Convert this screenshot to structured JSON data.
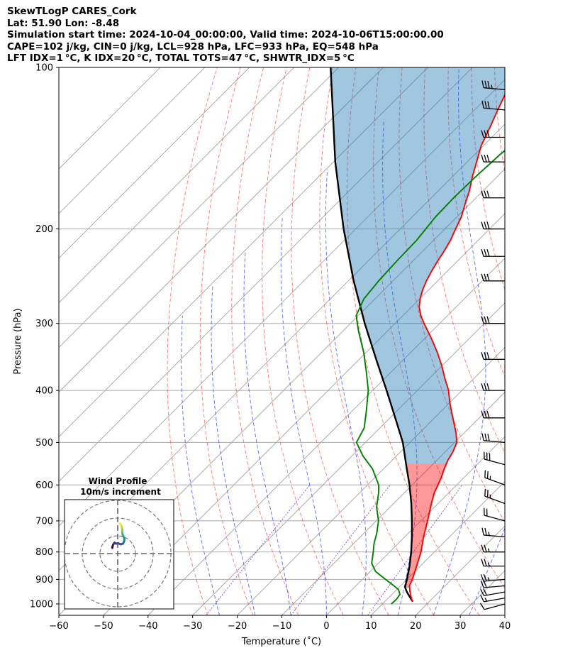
{
  "header": {
    "line1": "SkewTLogP CARES_Cork",
    "line2": "Lat: 51.90   Lon: -8.48",
    "line3": "Simulation start time: 2024-10-04_00:00:00, Valid time: 2024-10-06T15:00:00.00",
    "line4": "CAPE=102 j/kg, CIN=0 j/kg, LCL=928 hPa, LFC=933 hPa, EQ=548 hPa",
    "line5": "LFT IDX=1 °C, K IDX=20 °C, TOTAL TOTS=47 °C, SHWTR_IDX=5 °C"
  },
  "chart_data": {
    "type": "line",
    "title": "SkewTLogP CARES_Cork",
    "xlabel": "Temperature (˚C)",
    "ylabel": "Pressure (hPa)",
    "xlim": [
      -60,
      40
    ],
    "ylim": [
      1050,
      100
    ],
    "y_scale": "log",
    "x_ticks": [
      "−60",
      "−50",
      "−40",
      "−30",
      "−20",
      "−10",
      "0",
      "10",
      "20",
      "30",
      "40"
    ],
    "x_tick_values": [
      -60,
      -50,
      -40,
      -30,
      -20,
      -10,
      0,
      10,
      20,
      30,
      40
    ],
    "y_ticks": [
      "100",
      "200",
      "300",
      "400",
      "500",
      "600",
      "700",
      "800",
      "900",
      "1000"
    ],
    "y_tick_values": [
      100,
      200,
      300,
      400,
      500,
      600,
      700,
      800,
      900,
      1000
    ],
    "grid": true,
    "colors": {
      "temperature": "#ff0000",
      "dewpoint": "#008000",
      "parcel": "#000000",
      "cape_fill": "#ff0000",
      "cin_fill": "#1f77b4",
      "dry_adiabats": "#ff5555",
      "moist_adiabats": "#4455ff",
      "mixing_ratio": "#8844cc",
      "isotherms": "#aaaaaa"
    },
    "series": [
      {
        "role": "temperature",
        "pressure": [
          990,
          980,
          950,
          925,
          900,
          850,
          800,
          750,
          700,
          650,
          620,
          600,
          580,
          560,
          540,
          520,
          500,
          480,
          460,
          440,
          420,
          400,
          380,
          360,
          340,
          320,
          300,
          290,
          280,
          270,
          260,
          250,
          240,
          230,
          220,
          210,
          200,
          190,
          180,
          170,
          160,
          150,
          140,
          130,
          120,
          110,
          100
        ],
        "temp_c": [
          16.2,
          15.5,
          13.5,
          12.0,
          11.2,
          9.2,
          7.0,
          4.2,
          1.5,
          -1.5,
          -3.3,
          -4.2,
          -5.2,
          -6.4,
          -7.5,
          -8.3,
          -9.5,
          -11.8,
          -14.5,
          -17.3,
          -20.2,
          -23.0,
          -26.5,
          -30.0,
          -34.0,
          -38.5,
          -43.5,
          -46.0,
          -48.2,
          -49.9,
          -51.3,
          -52.5,
          -53.5,
          -54.4,
          -55.2,
          -56.2,
          -57.6,
          -59.0,
          -61.0,
          -63.0,
          -65.5,
          -67.9,
          -70.5,
          -72.5,
          -74.8,
          -77.2,
          -80.0
        ]
      },
      {
        "role": "dewpoint",
        "pressure": [
          1000,
          980,
          960,
          940,
          925,
          900,
          870,
          840,
          800,
          770,
          740,
          700,
          660,
          620,
          600,
          560,
          530,
          500,
          470,
          440,
          400,
          370,
          340,
          310,
          290,
          270,
          250,
          230,
          210,
          200,
          190,
          175,
          160,
          145,
          130,
          115,
          100
        ],
        "temp_c": [
          12.0,
          12.1,
          11.8,
          10.4,
          8.5,
          5.2,
          1.2,
          -1.5,
          -3.7,
          -5.5,
          -7.0,
          -9.5,
          -13.0,
          -15.8,
          -17.5,
          -22.5,
          -27.5,
          -32.0,
          -33.5,
          -36.5,
          -41.0,
          -45.5,
          -50.5,
          -56.5,
          -60.5,
          -62.5,
          -63.2,
          -63.6,
          -63.8,
          -64.3,
          -64.8,
          -65.0,
          -64.8,
          -64.3,
          -62.8,
          -60.8,
          -56.8
        ]
      },
      {
        "role": "parcel",
        "pressure": [
          990,
          980,
          950,
          933,
          928,
          900,
          850,
          800,
          750,
          700,
          650,
          600,
          560,
          548,
          500,
          450,
          400,
          350,
          300,
          250,
          200,
          150,
          100
        ],
        "temp_c": [
          16.3,
          15.4,
          12.8,
          11.5,
          11.2,
          10.0,
          7.6,
          4.8,
          1.6,
          -2.0,
          -6.0,
          -10.6,
          -14.8,
          -16.1,
          -21.6,
          -28.8,
          -36.9,
          -46.2,
          -56.8,
          -68.8,
          -82.7,
          -99.6,
          -121.8
        ]
      }
    ],
    "wind_barbs": {
      "pressure": [
        1000,
        975,
        950,
        925,
        900,
        850,
        800,
        750,
        700,
        650,
        600,
        550,
        500,
        450,
        400,
        350,
        300,
        250,
        225,
        200,
        175,
        150,
        135,
        120,
        110
      ],
      "speed_kt": [
        10,
        15,
        20,
        20,
        25,
        25,
        25,
        25,
        20,
        25,
        25,
        30,
        30,
        30,
        30,
        30,
        30,
        30,
        30,
        30,
        30,
        30,
        30,
        30,
        35
      ],
      "direction_deg": [
        255,
        260,
        260,
        265,
        265,
        270,
        270,
        275,
        285,
        290,
        290,
        285,
        275,
        270,
        270,
        270,
        270,
        270,
        270,
        270,
        270,
        270,
        270,
        275,
        275
      ]
    },
    "hodograph": {
      "title": "Wind Profile",
      "subtitle": "10m/s increment",
      "u": [
        -3.0,
        -2.9,
        -2.5,
        -1.8,
        -1.0,
        0.2,
        1.8,
        3.0,
        3.4,
        3.7,
        3.8,
        3.6,
        3.2,
        2.8,
        2.7,
        2.6,
        2.6,
        2.6,
        2.5,
        2.3,
        2.0,
        1.6,
        1.3
      ],
      "v": [
        3.2,
        4.1,
        5.2,
        6.1,
        5.6,
        5.8,
        5.2,
        5.6,
        6.4,
        7.2,
        8.0,
        8.9,
        9.7,
        10.5,
        11.4,
        12.0,
        12.5,
        13.3,
        14.1,
        15.0,
        15.9,
        16.5,
        16.9
      ]
    }
  }
}
